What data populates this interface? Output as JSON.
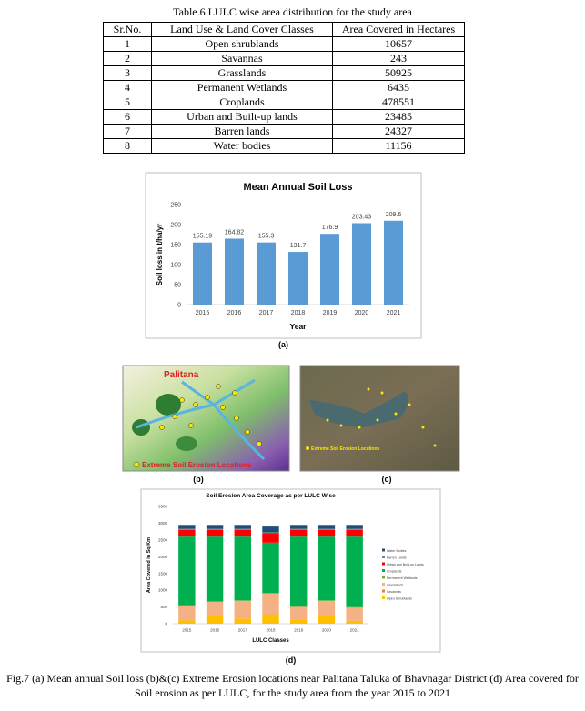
{
  "table": {
    "title": "Table.6 LULC wise area distribution for the study area",
    "header": [
      "Sr.No.",
      "Land Use & Land Cover Classes",
      "Area Covered in Hectares"
    ],
    "rows": [
      [
        1,
        "Open shrublands",
        10657
      ],
      [
        2,
        "Savannas",
        243
      ],
      [
        3,
        "Grasslands",
        50925
      ],
      [
        4,
        "Permanent Wetlands",
        6435
      ],
      [
        5,
        "Croplands",
        478551
      ],
      [
        6,
        "Urban and Built-up lands",
        23485
      ],
      [
        7,
        "Barren lands",
        24327
      ],
      [
        8,
        "Water bodies",
        11156
      ]
    ]
  },
  "chart_data": [
    {
      "type": "bar",
      "title": "Mean Annual Soil Loss",
      "xlabel": "Year",
      "ylabel": "Soil loss in t/ha/yr",
      "categories": [
        "2015",
        "2016",
        "2017",
        "2018",
        "2019",
        "2020",
        "2021"
      ],
      "values": [
        155.19,
        164.82,
        155.3,
        131.7,
        176.9,
        203.43,
        209.6
      ],
      "color": "#5b9bd5",
      "ylim": [
        0,
        250
      ],
      "yticks": [
        0,
        50,
        100,
        150,
        200,
        250
      ],
      "panel": "(a)"
    },
    {
      "type": "stacked_bar",
      "title": "Soil Erosion Area Coverage as per LULC Wise",
      "xlabel": "LULC Classes",
      "ylabel": "Area Covered in Sq.Km",
      "categories": [
        "2015",
        "2016",
        "2017",
        "2018",
        "2019",
        "2020",
        "2021"
      ],
      "ylim": [
        0,
        3500
      ],
      "yticks": [
        0,
        500,
        1000,
        1500,
        2000,
        2500,
        3000,
        3500
      ],
      "legend": "right",
      "panel": "(d)",
      "series": [
        {
          "name": "Open Shrublands",
          "color": "#ffc000",
          "values": [
            100,
            220,
            150,
            280,
            120,
            250,
            80
          ]
        },
        {
          "name": "Savannas",
          "color": "#ed7d31",
          "values": [
            5,
            5,
            5,
            5,
            5,
            5,
            5
          ]
        },
        {
          "name": "Grasslands",
          "color": "#f4b183",
          "values": [
            425,
            425,
            525,
            615,
            375,
            425,
            395
          ]
        },
        {
          "name": "Permanent Wetlands",
          "color": "#70ad47",
          "values": [
            20,
            20,
            20,
            20,
            20,
            20,
            20
          ]
        },
        {
          "name": "Croplands",
          "color": "#00b050",
          "values": [
            2050,
            1930,
            1900,
            1500,
            2080,
            1900,
            2100
          ]
        },
        {
          "name": "Urban and Built-up Lands",
          "color": "#ff0000",
          "values": [
            200,
            200,
            200,
            280,
            200,
            200,
            200
          ]
        },
        {
          "name": "Barren Lands",
          "color": "#7f7f7f",
          "values": [
            30,
            30,
            30,
            30,
            30,
            30,
            30
          ]
        },
        {
          "name": "Water Bodies",
          "color": "#1f4e79",
          "values": [
            120,
            120,
            120,
            170,
            120,
            120,
            120
          ]
        }
      ]
    }
  ],
  "maps": {
    "b": {
      "town": "Palitana",
      "legend": "Extreme Soil Erosion Locations",
      "panel": "(b)"
    },
    "c": {
      "legend": "Extreme Soil Erosion Locations",
      "panel": "(c)"
    }
  },
  "caption": [
    "Fig.7 (a) Mean annual Soil loss (b)&(c) Extreme Erosion locations near Palitana Taluka of Bhavnagar District (d) Area covered for",
    "Soil erosion as per LULC, for the study area from the year 2015 to 2021"
  ]
}
